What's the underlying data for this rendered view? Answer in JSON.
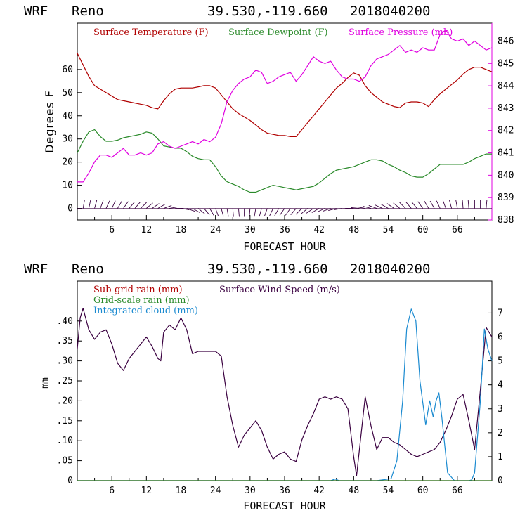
{
  "header": {
    "model": "WRF",
    "station": "Reno",
    "coords": "39.530,-119.660",
    "date": "2018040200"
  },
  "colors": {
    "temperature": "#b00000",
    "dewpoint": "#2a8a2a",
    "pressure": "#e000e0",
    "wind": "#3a0040",
    "subgrid": "#b00000",
    "gridscale": "#2a8a2a",
    "cloud": "#1a8ad0"
  },
  "chart_data": [
    {
      "type": "line",
      "title": "",
      "xlabel": "FORECAST HOUR",
      "ylabel": "Degrees F",
      "xlim": [
        0,
        72
      ],
      "ylim": [
        -5,
        80
      ],
      "y2lim": [
        838,
        846.8
      ],
      "xticks": [
        "6",
        "12",
        "18",
        "24",
        "30",
        "36",
        "42",
        "48",
        "54",
        "60",
        "66"
      ],
      "yticks": [
        "0",
        "10",
        "20",
        "30",
        "40",
        "50",
        "60"
      ],
      "y2ticks": [
        "838",
        "839",
        "840",
        "841",
        "842",
        "843",
        "844",
        "845",
        "846"
      ],
      "legend": [
        "Surface Temperature (F)",
        "Surface Dewpoint (F)",
        "Surface Pressure (mb)"
      ],
      "legend_placement": "top",
      "series": [
        {
          "name": "Surface Temperature (F)",
          "axis": "left",
          "x": [
            0,
            1,
            2,
            3,
            4,
            5,
            6,
            7,
            8,
            9,
            10,
            11,
            12,
            13,
            14,
            15,
            16,
            17,
            18,
            19,
            20,
            21,
            22,
            23,
            24,
            25,
            26,
            27,
            28,
            29,
            30,
            31,
            32,
            33,
            34,
            35,
            36,
            37,
            38,
            39,
            40,
            41,
            42,
            43,
            44,
            45,
            46,
            47,
            48,
            49,
            50,
            51,
            52,
            53,
            54,
            55,
            56,
            57,
            58,
            59,
            60,
            61,
            62,
            63,
            64,
            65,
            66,
            67,
            68,
            69,
            70,
            71,
            72
          ],
          "y": [
            67,
            62,
            57,
            53,
            51.5,
            50,
            48.5,
            47,
            46.5,
            46,
            45.5,
            45,
            44.5,
            43.5,
            43,
            46.5,
            49.5,
            51.5,
            52,
            52,
            52,
            52.5,
            53,
            53,
            52,
            49,
            46,
            43,
            41,
            39.5,
            38,
            36,
            34,
            32.5,
            32,
            31.5,
            31.5,
            31,
            31,
            34,
            37,
            40,
            43,
            46,
            49,
            52,
            54,
            56.5,
            58.5,
            57.5,
            53,
            50,
            48,
            46,
            45,
            44,
            43.5,
            45.5,
            46,
            46,
            45.5,
            44,
            47,
            49.5,
            51.5,
            53.5,
            55.5,
            58,
            60,
            61,
            61,
            60,
            59
          ]
        },
        {
          "name": "Surface Dewpoint (F)",
          "axis": "left",
          "x": [
            0,
            1,
            2,
            3,
            4,
            5,
            6,
            7,
            8,
            9,
            10,
            11,
            12,
            13,
            14,
            15,
            16,
            17,
            18,
            19,
            20,
            21,
            22,
            23,
            24,
            25,
            26,
            27,
            28,
            29,
            30,
            31,
            32,
            33,
            34,
            35,
            36,
            37,
            38,
            39,
            40,
            41,
            42,
            43,
            44,
            45,
            46,
            47,
            48,
            49,
            50,
            51,
            52,
            53,
            54,
            55,
            56,
            57,
            58,
            59,
            60,
            61,
            62,
            63,
            64,
            65,
            66,
            67,
            68,
            69,
            70,
            71,
            72
          ],
          "y": [
            24,
            29,
            33,
            34,
            31,
            29,
            29,
            29.5,
            30.5,
            31,
            31.5,
            32,
            33,
            32.5,
            30,
            27,
            26.5,
            26,
            26,
            24.5,
            22.5,
            21.5,
            21,
            21,
            18,
            14,
            11.5,
            10.5,
            9.5,
            8,
            7,
            7,
            8,
            9,
            10,
            9.5,
            9,
            8.5,
            8,
            8.5,
            9,
            9.5,
            11,
            13,
            15,
            16.5,
            17,
            17.5,
            18,
            19,
            20,
            21,
            21,
            20.5,
            19,
            18,
            16.5,
            15.5,
            14,
            13.5,
            13.5,
            15,
            17,
            19,
            19,
            19,
            19,
            19,
            20,
            21.5,
            22.5,
            23.5,
            23.5
          ]
        },
        {
          "name": "Surface Pressure (mb)",
          "axis": "right",
          "x": [
            0,
            1,
            2,
            3,
            4,
            5,
            6,
            7,
            8,
            9,
            10,
            11,
            12,
            13,
            14,
            15,
            16,
            17,
            18,
            19,
            20,
            21,
            22,
            23,
            24,
            25,
            26,
            27,
            28,
            29,
            30,
            31,
            32,
            33,
            34,
            35,
            36,
            37,
            38,
            39,
            40,
            41,
            42,
            43,
            44,
            45,
            46,
            47,
            48,
            49,
            50,
            51,
            52,
            53,
            54,
            55,
            56,
            57,
            58,
            59,
            60,
            61,
            62,
            63,
            64,
            65,
            66,
            67,
            68,
            69,
            70,
            71,
            72
          ],
          "y": [
            839.7,
            839.7,
            840.1,
            840.6,
            840.9,
            840.9,
            840.8,
            841,
            841.2,
            840.9,
            840.9,
            841,
            840.9,
            841,
            841.4,
            841.5,
            841.3,
            841.2,
            841.3,
            841.4,
            841.5,
            841.4,
            841.6,
            841.5,
            841.7,
            842.3,
            843.3,
            843.8,
            844.1,
            844.3,
            844.4,
            844.7,
            844.6,
            844.1,
            844.2,
            844.4,
            844.5,
            844.6,
            844.2,
            844.5,
            844.9,
            845.3,
            845.1,
            845,
            845.1,
            844.7,
            844.4,
            844.3,
            844.3,
            844.2,
            844.4,
            844.9,
            845.2,
            845.3,
            845.4,
            845.6,
            845.8,
            845.5,
            845.6,
            845.5,
            845.7,
            845.6,
            845.6,
            846.3,
            846.5,
            846.1,
            846,
            846.1,
            845.8,
            846,
            845.8,
            845.6,
            845.7
          ]
        }
      ]
    },
    {
      "type": "line",
      "title": "",
      "xlabel": "FORECAST HOUR",
      "ylabel": "mm",
      "xlim": [
        0,
        72
      ],
      "ylim": [
        0,
        0.5
      ],
      "y2lim": [
        0,
        8.333
      ],
      "xticks": [
        "6",
        "12",
        "18",
        "24",
        "30",
        "36",
        "42",
        "48",
        "54",
        "60",
        "66"
      ],
      "yticks": [
        "0",
        ".05",
        ".10",
        ".15",
        ".20",
        ".25",
        ".30",
        ".35",
        ".40"
      ],
      "y2ticks": [
        "0",
        "1",
        "2",
        "3",
        "4",
        "5",
        "6",
        "7"
      ],
      "legend": [
        "Sub-grid rain (mm)",
        "Surface Wind Speed (m/s)",
        "Grid-scale rain (mm)",
        "Integrated cloud (mm)"
      ],
      "legend_placement": "top-left",
      "series": [
        {
          "name": "Surface Wind Speed (m/s)",
          "axis": "right",
          "x": [
            0,
            0.5,
            1,
            2,
            3,
            4,
            5,
            6,
            7,
            8,
            9,
            10,
            11,
            12,
            13,
            14,
            14.5,
            15,
            16,
            17,
            18,
            19,
            20,
            21,
            22,
            23,
            24,
            25,
            26,
            27,
            28,
            29,
            30,
            31,
            32,
            33,
            34,
            35,
            36,
            37,
            38,
            39,
            40,
            41,
            42,
            43,
            44,
            45,
            46,
            47,
            48,
            48.5,
            49,
            50,
            51,
            52,
            53,
            54,
            55,
            56,
            57,
            58,
            59,
            60,
            61,
            62,
            63,
            64,
            65,
            66,
            67,
            68,
            69,
            70,
            71,
            72
          ],
          "y": [
            5.5,
            6.8,
            7.2,
            6.3,
            5.9,
            6.2,
            6.3,
            5.7,
            4.9,
            4.6,
            5.1,
            5.4,
            5.7,
            6,
            5.6,
            5.1,
            5,
            6.2,
            6.5,
            6.3,
            6.8,
            6.3,
            5.3,
            5.4,
            5.4,
            5.4,
            5.4,
            5.2,
            3.5,
            2.3,
            1.4,
            1.9,
            2.2,
            2.5,
            2.1,
            1.4,
            0.9,
            1.1,
            1.2,
            0.9,
            0.8,
            1.7,
            2.3,
            2.8,
            3.4,
            3.5,
            3.4,
            3.5,
            3.4,
            3,
            1,
            0.2,
            1.3,
            3.5,
            2.3,
            1.3,
            1.8,
            1.8,
            1.6,
            1.5,
            1.3,
            1.1,
            1,
            1.1,
            1.2,
            1.3,
            1.6,
            2.1,
            2.7,
            3.4,
            3.6,
            2.5,
            1.3,
            3.8,
            6.4,
            6
          ]
        },
        {
          "name": "Integrated cloud (mm)",
          "axis": "left",
          "x": [
            0,
            44,
            44.8,
            45.5,
            46.5,
            52,
            54.5,
            55.5,
            56.5,
            57.2,
            58,
            58.8,
            59.5,
            60.5,
            61.2,
            61.8,
            62.3,
            62.8,
            63.3,
            64.3,
            65.5,
            68,
            68.5,
            69,
            70,
            70.7,
            71.3,
            72
          ],
          "y": [
            0,
            0,
            0.004,
            0,
            0,
            0,
            0.005,
            0.05,
            0.2,
            0.38,
            0.43,
            0.4,
            0.25,
            0.14,
            0.2,
            0.16,
            0.2,
            0.22,
            0.16,
            0.02,
            0,
            0,
            0.002,
            0.02,
            0.2,
            0.38,
            0.33,
            0.3
          ]
        },
        {
          "name": "Sub-grid rain (mm)",
          "axis": "left",
          "x": [
            0,
            72
          ],
          "y": [
            0,
            0
          ]
        },
        {
          "name": "Grid-scale rain (mm)",
          "axis": "left",
          "x": [
            0,
            72
          ],
          "y": [
            0,
            0
          ]
        }
      ]
    }
  ]
}
